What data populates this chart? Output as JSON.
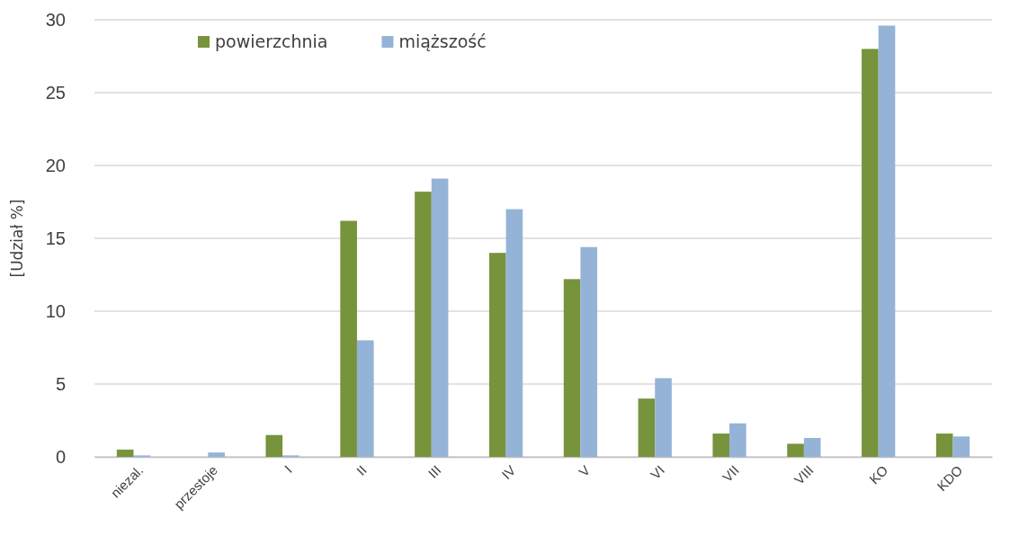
{
  "chart_data": {
    "type": "bar",
    "ylabel": "[Udział %]",
    "categories": [
      "niezal.",
      "przestoje",
      "I",
      "II",
      "III",
      "IV",
      "V",
      "VI",
      "VII",
      "VIII",
      "KO",
      "KDO"
    ],
    "series": [
      {
        "name": "powierzchnia",
        "color": "#77933c",
        "values": [
          0.5,
          0,
          1.5,
          16.2,
          18.2,
          14,
          12.2,
          4,
          1.6,
          0.9,
          28,
          1.6
        ]
      },
      {
        "name": "miąższość",
        "color": "#95b3d7",
        "values": [
          0.1,
          0.3,
          0.1,
          8,
          19.1,
          17,
          14.4,
          5.4,
          2.3,
          1.3,
          29.6,
          1.4
        ]
      }
    ],
    "ylim": [
      0,
      30
    ],
    "yticks": [
      0,
      5,
      10,
      15,
      20,
      25,
      30
    ],
    "grid": true,
    "legend": "top left"
  }
}
